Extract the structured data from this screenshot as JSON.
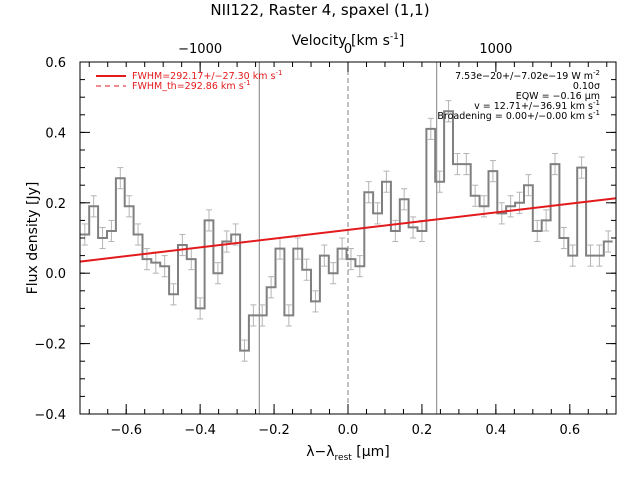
{
  "chart_data": {
    "type": "line",
    "title": "NII122, Raster 4, spaxel (1,1)",
    "xlabel": "λ−λrest [μm]",
    "xlabel_parts": [
      "λ−λ",
      "rest",
      " [",
      "μ",
      "m]"
    ],
    "ylabel": "Flux density [Jy]",
    "top_axis_label": "Velocity [km s⁻¹]",
    "top_axis_label_parts": [
      "Velocity [km s",
      "-1",
      "]"
    ],
    "xlim": [
      -0.725,
      0.725
    ],
    "ylim": [
      -0.4,
      0.6
    ],
    "x_ticks": [
      -0.6,
      -0.4,
      -0.2,
      0.0,
      0.2,
      0.4,
      0.6
    ],
    "x_tick_labels": [
      "−0.6",
      "−0.4",
      "−0.2",
      "0.0",
      "0.2",
      "0.4",
      "0.6"
    ],
    "y_ticks": [
      -0.4,
      -0.2,
      0.0,
      0.2,
      0.4,
      0.6
    ],
    "y_tick_labels": [
      "−0.4",
      "−0.2",
      "0.0",
      "0.2",
      "0.4",
      "0.6"
    ],
    "top_ticks_x": [
      -0.4,
      0.0,
      0.4
    ],
    "top_tick_labels": [
      "−1000",
      "0",
      "1000"
    ],
    "vertical_lines_solid": [
      -0.24,
      0.24
    ],
    "vertical_line_dashed": 0.0,
    "bin_width": 0.024,
    "spectrum": {
      "x": [
        -0.712,
        -0.688,
        -0.664,
        -0.64,
        -0.616,
        -0.592,
        -0.568,
        -0.544,
        -0.52,
        -0.496,
        -0.472,
        -0.448,
        -0.424,
        -0.4,
        -0.376,
        -0.352,
        -0.328,
        -0.304,
        -0.28,
        -0.256,
        -0.232,
        -0.208,
        -0.184,
        -0.16,
        -0.136,
        -0.112,
        -0.088,
        -0.064,
        -0.04,
        -0.016,
        0.008,
        0.032,
        0.056,
        0.08,
        0.104,
        0.128,
        0.152,
        0.176,
        0.2,
        0.224,
        0.248,
        0.272,
        0.296,
        0.32,
        0.344,
        0.368,
        0.392,
        0.416,
        0.44,
        0.464,
        0.488,
        0.512,
        0.536,
        0.56,
        0.584,
        0.608,
        0.632,
        0.656,
        0.68,
        0.704
      ],
      "y": [
        0.11,
        0.19,
        0.1,
        0.12,
        0.27,
        0.19,
        0.11,
        0.04,
        0.03,
        0.02,
        -0.06,
        0.08,
        0.04,
        -0.1,
        0.15,
        0.0,
        0.09,
        0.11,
        -0.22,
        -0.12,
        -0.12,
        -0.04,
        0.07,
        -0.12,
        0.07,
        0.01,
        -0.08,
        0.05,
        0.0,
        0.07,
        0.04,
        0.02,
        0.23,
        0.17,
        0.26,
        0.12,
        0.21,
        0.13,
        0.12,
        0.41,
        0.26,
        0.46,
        0.31,
        0.31,
        0.22,
        0.19,
        0.29,
        0.17,
        0.19,
        0.2,
        0.25,
        0.12,
        0.15,
        0.31,
        0.1,
        0.05,
        0.3,
        0.05,
        0.05,
        0.09
      ],
      "err": [
        0.03,
        0.03,
        0.03,
        0.03,
        0.03,
        0.03,
        0.03,
        0.03,
        0.03,
        0.03,
        0.03,
        0.03,
        0.03,
        0.03,
        0.03,
        0.03,
        0.03,
        0.03,
        0.03,
        0.03,
        0.03,
        0.03,
        0.03,
        0.03,
        0.03,
        0.03,
        0.03,
        0.03,
        0.03,
        0.03,
        0.03,
        0.03,
        0.03,
        0.03,
        0.03,
        0.03,
        0.03,
        0.03,
        0.03,
        0.03,
        0.03,
        0.03,
        0.03,
        0.03,
        0.03,
        0.03,
        0.03,
        0.03,
        0.03,
        0.03,
        0.03,
        0.03,
        0.03,
        0.03,
        0.03,
        0.03,
        0.03,
        0.03,
        0.03,
        0.03
      ]
    },
    "fit_line": {
      "x": [
        -0.725,
        0.725
      ],
      "y": [
        0.033,
        0.213
      ]
    },
    "legend": [
      {
        "style": "solid",
        "label": "FWHM=292.17+/−27.30 km s",
        "sup": "-1"
      },
      {
        "style": "dashed",
        "label": "FWHM_th=292.86 km s",
        "sup": "-1"
      }
    ],
    "annotations": [
      {
        "text": "7.53e−20+/−7.02e−19 W m",
        "sup": "-2"
      },
      {
        "text": "0.10σ",
        "sup": ""
      },
      {
        "text": "EQW = −0.16 μm",
        "sup": ""
      },
      {
        "text": "v = 12.71+/−36.91 km s",
        "sup": "-1"
      },
      {
        "text": "Broadening = 0.00+/−0.00 km s",
        "sup": "-1"
      }
    ],
    "colors": {
      "spectrum": "#808080",
      "error_bars": "#b4b4b4",
      "fit": "#e31a1c",
      "ref_lines": "#808080",
      "axes": "#000000"
    }
  }
}
